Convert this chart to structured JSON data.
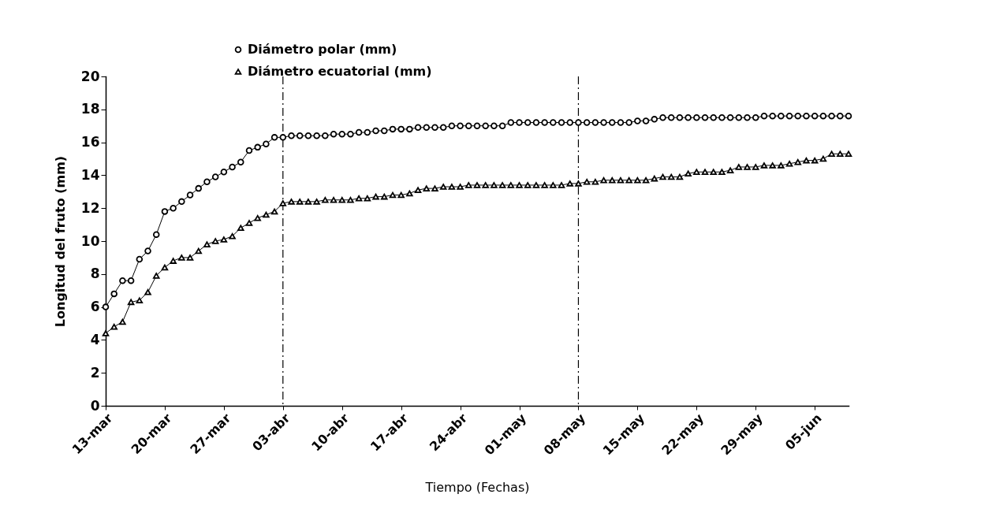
{
  "chart_data": {
    "type": "line",
    "xlabel": "Tiempo (Fechas)",
    "ylabel": "Longitud del fruto (mm)",
    "x": [
      "--03-13",
      "--03-14",
      "--03-15",
      "--03-16",
      "--03-17",
      "--03-18",
      "--03-19",
      "--03-20",
      "--03-21",
      "--03-22",
      "--03-23",
      "--03-24",
      "--03-25",
      "--03-26",
      "--03-27",
      "--03-28",
      "--03-29",
      "--03-30",
      "--03-31",
      "--04-01",
      "--04-02",
      "--04-03",
      "--04-04",
      "--04-05",
      "--04-06",
      "--04-07",
      "--04-08",
      "--04-09",
      "--04-10",
      "--04-11",
      "--04-12",
      "--04-13",
      "--04-14",
      "--04-15",
      "--04-16",
      "--04-17",
      "--04-18",
      "--04-19",
      "--04-20",
      "--04-21",
      "--04-22",
      "--04-23",
      "--04-24",
      "--04-25",
      "--04-26",
      "--04-27",
      "--04-28",
      "--04-29",
      "--04-30",
      "--05-01",
      "--05-02",
      "--05-03",
      "--05-04",
      "--05-05",
      "--05-06",
      "--05-07",
      "--05-08",
      "--05-09",
      "--05-10",
      "--05-11",
      "--05-12",
      "--05-13",
      "--05-14",
      "--05-15",
      "--05-16",
      "--05-17",
      "--05-18",
      "--05-19",
      "--05-20",
      "--05-21",
      "--05-22",
      "--05-23",
      "--05-24",
      "--05-25",
      "--05-26",
      "--05-27",
      "--05-28",
      "--05-29",
      "--05-30",
      "--05-31",
      "--06-01",
      "--06-02",
      "--06-03",
      "--06-04",
      "--06-05",
      "--06-06",
      "--06-07",
      "--06-08",
      "--06-09"
    ],
    "series": [
      {
        "name": "Diámetro polar (mm)",
        "color": "#000000",
        "marker": "circle",
        "values": [
          6.0,
          6.8,
          7.6,
          7.6,
          8.9,
          9.4,
          10.4,
          11.8,
          12.0,
          12.4,
          12.8,
          13.2,
          13.6,
          13.9,
          14.2,
          14.5,
          14.8,
          15.5,
          15.7,
          15.9,
          16.3,
          16.3,
          16.4,
          16.4,
          16.4,
          16.4,
          16.4,
          16.5,
          16.5,
          16.5,
          16.6,
          16.6,
          16.7,
          16.7,
          16.8,
          16.8,
          16.8,
          16.9,
          16.9,
          16.9,
          16.9,
          17.0,
          17.0,
          17.0,
          17.0,
          17.0,
          17.0,
          17.0,
          17.2,
          17.2,
          17.2,
          17.2,
          17.2,
          17.2,
          17.2,
          17.2,
          17.2,
          17.2,
          17.2,
          17.2,
          17.2,
          17.2,
          17.2,
          17.3,
          17.3,
          17.4,
          17.5,
          17.5,
          17.5,
          17.5,
          17.5,
          17.5,
          17.5,
          17.5,
          17.5,
          17.5,
          17.5,
          17.5,
          17.6,
          17.6,
          17.6,
          17.6,
          17.6,
          17.6,
          17.6,
          17.6,
          17.6,
          17.6,
          17.6
        ]
      },
      {
        "name": "Diámetro ecuatorial (mm)",
        "color": "#000000",
        "marker": "triangle",
        "values": [
          4.4,
          4.8,
          5.1,
          6.3,
          6.4,
          6.9,
          7.9,
          8.4,
          8.8,
          9.0,
          9.0,
          9.4,
          9.8,
          10.0,
          10.1,
          10.3,
          10.8,
          11.1,
          11.4,
          11.6,
          11.8,
          12.3,
          12.4,
          12.4,
          12.4,
          12.4,
          12.5,
          12.5,
          12.5,
          12.5,
          12.6,
          12.6,
          12.7,
          12.7,
          12.8,
          12.8,
          12.9,
          13.1,
          13.2,
          13.2,
          13.3,
          13.3,
          13.3,
          13.4,
          13.4,
          13.4,
          13.4,
          13.4,
          13.4,
          13.4,
          13.4,
          13.4,
          13.4,
          13.4,
          13.4,
          13.5,
          13.5,
          13.6,
          13.6,
          13.7,
          13.7,
          13.7,
          13.7,
          13.7,
          13.7,
          13.8,
          13.9,
          13.9,
          13.9,
          14.1,
          14.2,
          14.2,
          14.2,
          14.2,
          14.3,
          14.5,
          14.5,
          14.5,
          14.6,
          14.6,
          14.6,
          14.7,
          14.8,
          14.9,
          14.9,
          15.0,
          15.3,
          15.3,
          15.3
        ]
      }
    ],
    "xlim": [
      "--03-13",
      "--06-09"
    ],
    "xticks": [
      {
        "value": "--03-13",
        "label": "13-mar"
      },
      {
        "value": "--03-20",
        "label": "20-mar"
      },
      {
        "value": "--03-27",
        "label": "27-mar"
      },
      {
        "value": "--04-03",
        "label": "03-abr"
      },
      {
        "value": "--04-10",
        "label": "10-abr"
      },
      {
        "value": "--04-17",
        "label": "17-abr"
      },
      {
        "value": "--04-24",
        "label": "24-abr"
      },
      {
        "value": "--05-01",
        "label": "01-may"
      },
      {
        "value": "--05-08",
        "label": "08-may"
      },
      {
        "value": "--05-15",
        "label": "15-may"
      },
      {
        "value": "--05-22",
        "label": "22-may"
      },
      {
        "value": "--05-29",
        "label": "29-may"
      },
      {
        "value": "--06-05",
        "label": "05-jun"
      }
    ],
    "ylim": [
      0,
      20
    ],
    "yticks": [
      0,
      2,
      4,
      6,
      8,
      10,
      12,
      14,
      16,
      18,
      20
    ],
    "ref_lines": [
      {
        "axis": "x",
        "value": "--04-03",
        "color": "#000000",
        "line_style": "dashed"
      },
      {
        "axis": "x",
        "value": "--05-08",
        "color": "#000000",
        "line_style": "dashed"
      }
    ],
    "grid": false,
    "legend": "top left",
    "line_style": "solid"
  }
}
